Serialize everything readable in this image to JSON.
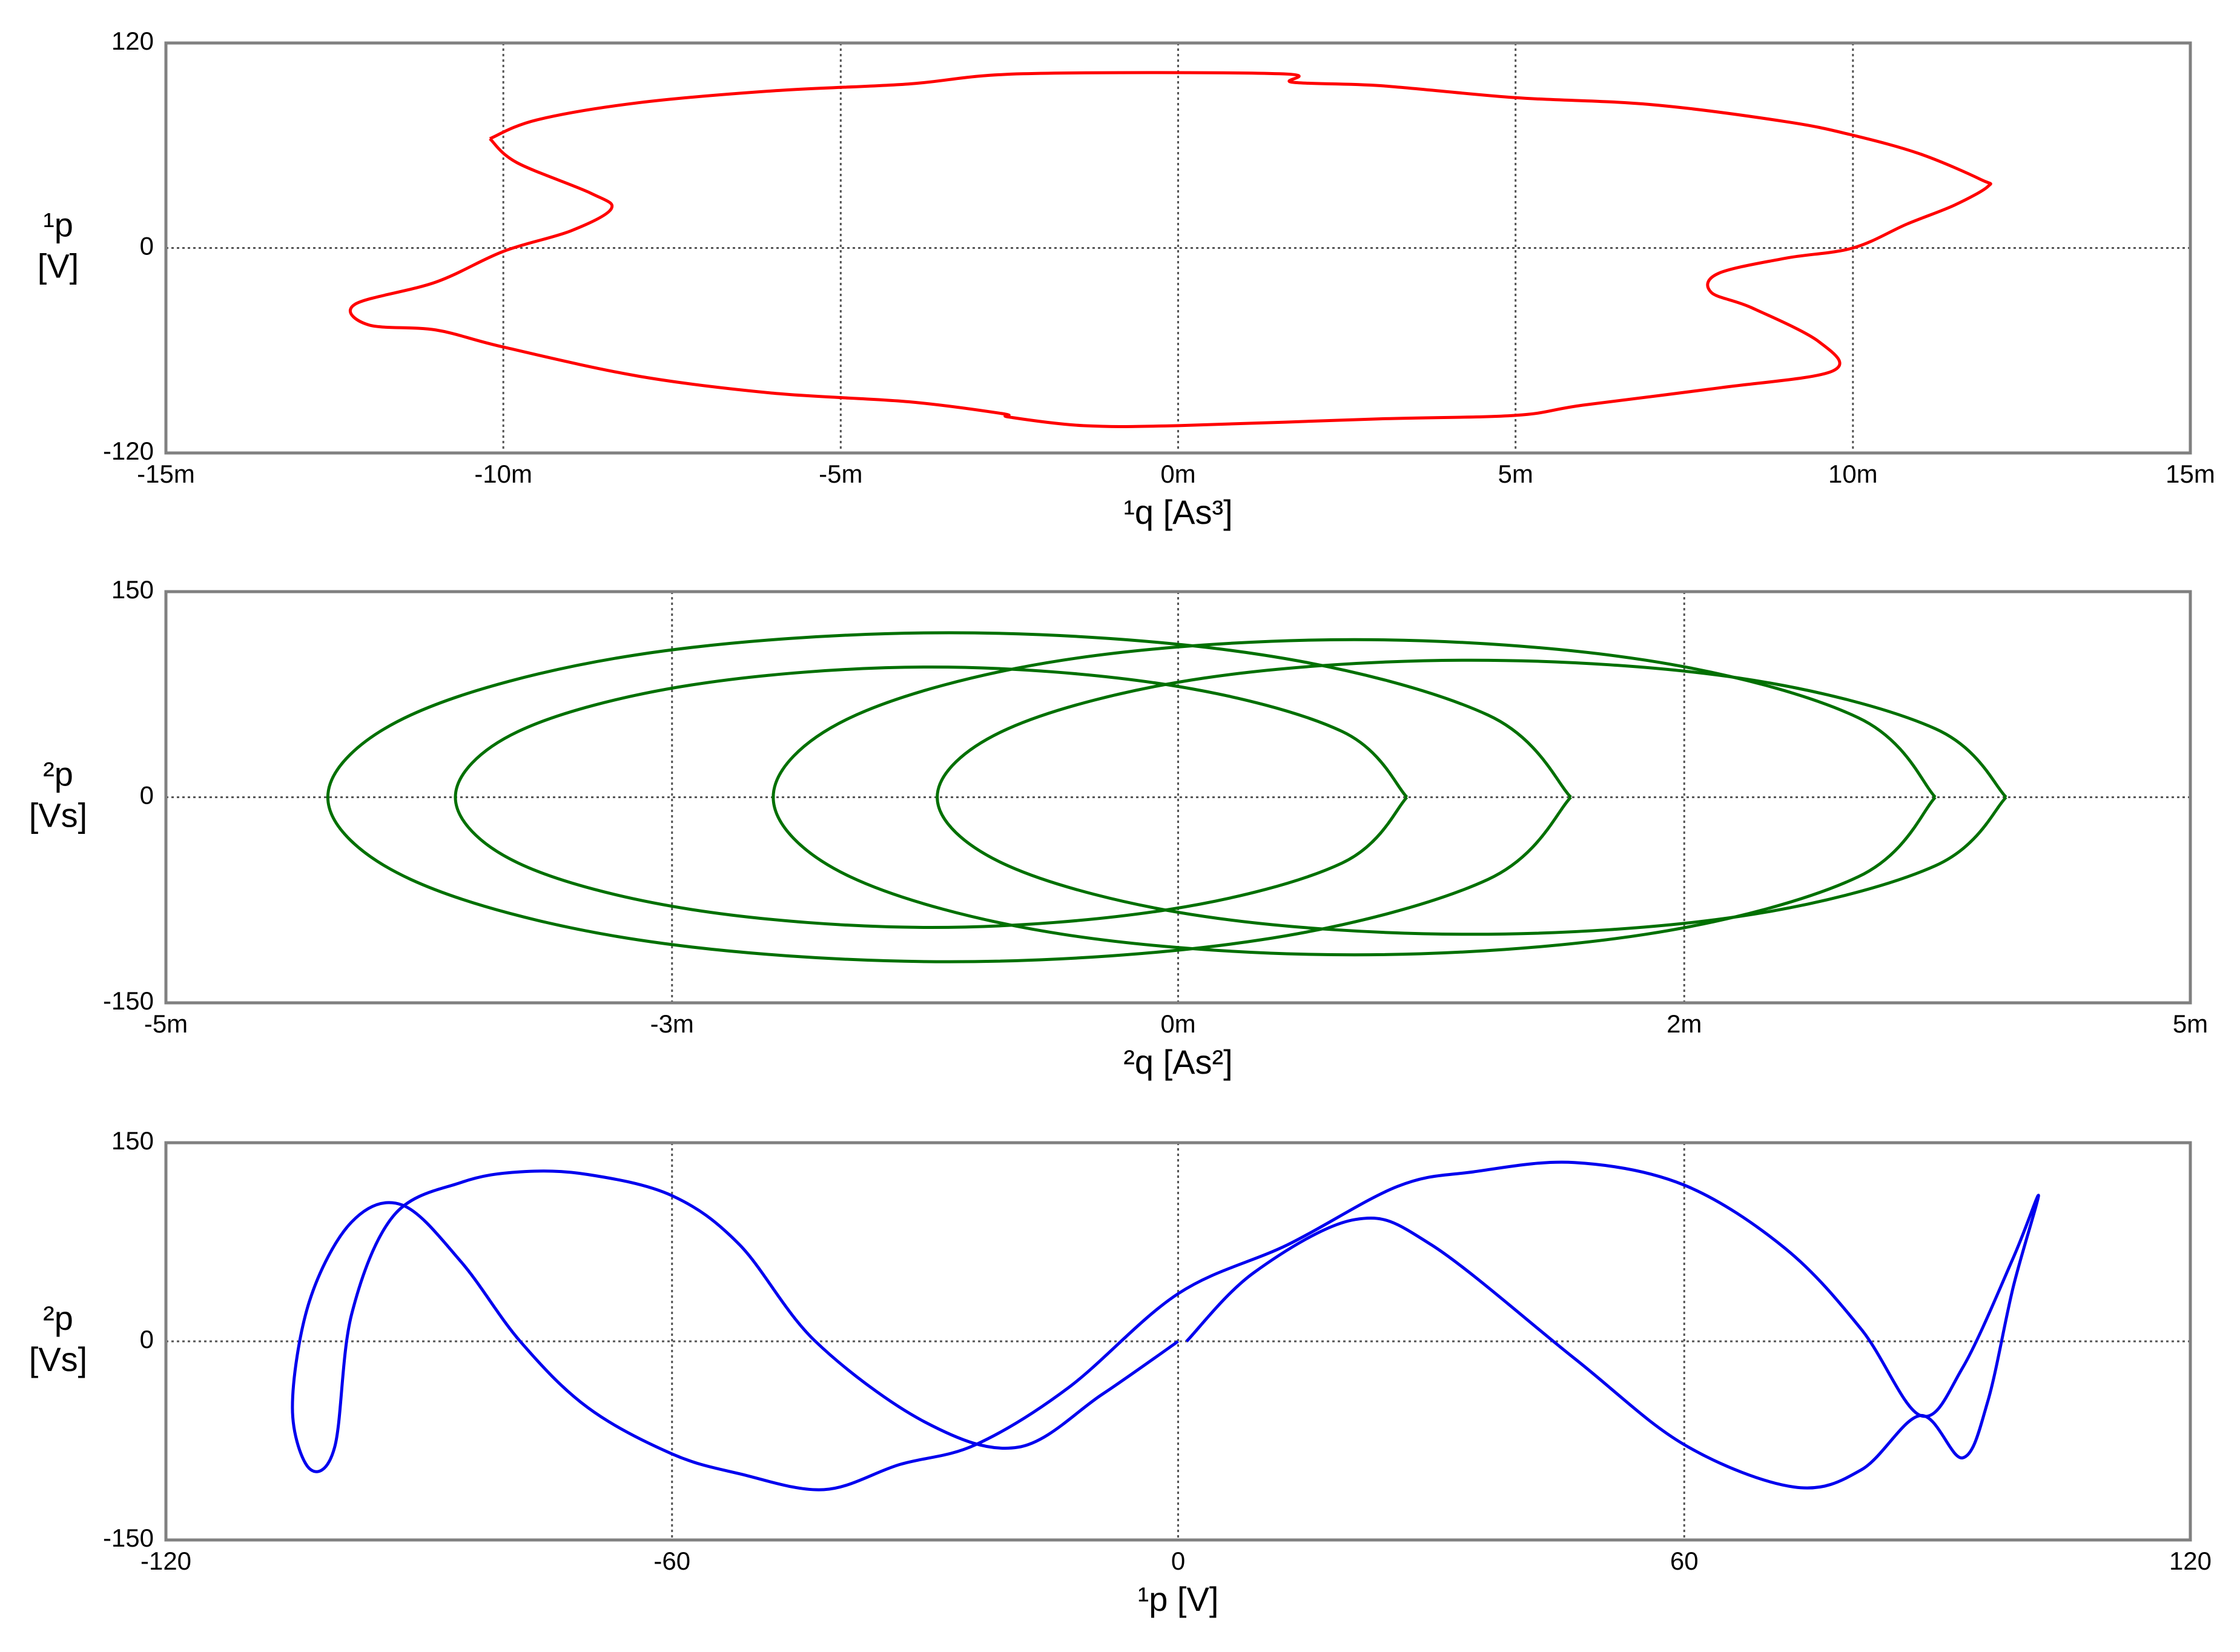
{
  "chart_data": [
    {
      "type": "line",
      "xlabel": "¹q [As³]",
      "ylabel": [
        "¹p",
        "[V]"
      ],
      "xlim": [
        -0.015,
        0.015
      ],
      "ylim": [
        -120,
        120
      ],
      "xticks": [
        {
          "value": -0.015,
          "label": "-15m"
        },
        {
          "value": -0.01,
          "label": "-10m"
        },
        {
          "value": -0.005,
          "label": "-5m"
        },
        {
          "value": 0,
          "label": "0m"
        },
        {
          "value": 0.005,
          "label": "5m"
        },
        {
          "value": 0.01,
          "label": "10m"
        },
        {
          "value": 0.015,
          "label": "15m"
        }
      ],
      "yticks": [
        -120,
        0,
        120
      ],
      "grid": true,
      "series": [
        {
          "color": "#ff0000",
          "x": [
            -0.0102,
            -0.0095,
            -0.008,
            -0.006,
            -0.004,
            -0.0023,
            0.0015,
            0.0017,
            0.003,
            0.005,
            0.007,
            0.009,
            0.01,
            0.011,
            0.0119,
            0.012,
            0.0115,
            0.0108,
            0.01,
            0.009,
            0.008,
            0.0079,
            0.0085,
            0.0095,
            0.0097,
            0.008,
            0.006,
            0.005,
            0.003,
            0,
            -0.0014,
            -0.0025,
            -0.0026,
            -0.004,
            -0.006,
            -0.008,
            -0.01,
            -0.011,
            -0.012,
            -0.0122,
            -0.011,
            -0.01,
            -0.009,
            -0.0084,
            -0.0087,
            -0.0098,
            -0.0102
          ],
          "values": [
            64,
            75,
            85,
            92,
            96,
            102,
            102,
            97,
            95,
            88,
            84,
            74,
            66,
            55,
            40,
            36,
            25,
            14,
            0,
            -6,
            -15,
            -26,
            -35,
            -55,
            -72,
            -82,
            -92,
            -98,
            -100,
            -104,
            -104,
            -99,
            -97,
            -90,
            -85,
            -75,
            -58,
            -48,
            -45,
            -33,
            -20,
            -2,
            10,
            23,
            32,
            50,
            64
          ]
        }
      ]
    },
    {
      "type": "line",
      "xlabel": "²q [As²]",
      "ylabel": [
        "²p",
        "[Vs]"
      ],
      "xlim": [
        -0.005,
        0.005
      ],
      "ylim": [
        -150,
        150
      ],
      "xticks": [
        {
          "value": -0.005,
          "label": "-5m"
        },
        {
          "value": -0.0025,
          "label": "-3m"
        },
        {
          "value": 0,
          "label": "0m"
        },
        {
          "value": 0.0025,
          "label": "2m"
        },
        {
          "value": 0.005,
          "label": "5m"
        }
      ],
      "yticks": [
        -150,
        0,
        150
      ],
      "grid": true,
      "series": [
        {
          "color": "#007000",
          "x": [
            0.00194,
            0.00153,
            0.00041,
            -0.00113,
            -0.00267,
            -0.00379,
            -0.0042,
            -0.00379,
            -0.00267,
            -0.00113,
            0.00041,
            0.00153,
            0.00194
          ],
          "values": [
            0,
            60,
            104,
            120,
            104,
            60,
            0,
            -60,
            -104,
            -120,
            -104,
            -60,
            0
          ]
        },
        {
          "color": "#007000",
          "x": [
            0.00113,
            0.00081,
            -5e-05,
            -0.00122,
            -0.0024,
            -0.00326,
            -0.00357,
            -0.00326,
            -0.0024,
            -0.00122,
            -5e-05,
            0.00081,
            0.00113
          ],
          "values": [
            0,
            48,
            82,
            95,
            82,
            48,
            0,
            -48,
            -82,
            -95,
            -82,
            -48,
            0
          ]
        },
        {
          "color": "#007000",
          "x": [
            0.00374,
            0.00336,
            0.00231,
            0.00087,
            -0.00057,
            -0.00162,
            -0.002,
            -0.00162,
            -0.00057,
            0.00087,
            0.00231,
            0.00336,
            0.00374
          ],
          "values": [
            0,
            58,
            100,
            115,
            100,
            58,
            0,
            -58,
            -100,
            -115,
            -100,
            -58,
            0
          ]
        },
        {
          "color": "#007000",
          "x": [
            0.00409,
            0.00374,
            0.00277,
            0.00145,
            0.00013,
            -0.00084,
            -0.00119,
            -0.00084,
            0.00013,
            0.00145,
            0.00277,
            0.00374,
            0.00409
          ],
          "values": [
            0,
            50,
            87,
            100,
            87,
            50,
            0,
            -50,
            -87,
            -100,
            -87,
            -50,
            0
          ]
        }
      ]
    },
    {
      "type": "line",
      "xlabel": "¹p [V]",
      "ylabel": [
        "²p",
        "[Vs]"
      ],
      "xlim": [
        -120,
        120
      ],
      "ylim": [
        -150,
        150
      ],
      "xticks": [
        -120,
        -60,
        0,
        60,
        120
      ],
      "yticks": [
        -150,
        0,
        150
      ],
      "grid": true,
      "series": [
        {
          "color": "#0000ee",
          "x": [
            1,
            9,
            21,
            30,
            47,
            60,
            73,
            81,
            88,
            93,
            96,
            99,
            102,
            99,
            93,
            88,
            81,
            72,
            60,
            47,
            35,
            26,
            13,
            0,
            -13,
            -24,
            -33,
            -42,
            -52,
            -60,
            -70,
            -78,
            -85,
            -92,
            -98,
            -103,
            -105,
            -103,
            -100,
            -98,
            -93,
            -85,
            -78,
            -70,
            -60,
            -52,
            -43,
            -30,
            -19,
            -9,
            0
          ],
          "values": [
            0,
            52,
            92,
            73,
            -13,
            -78,
            -110,
            -97,
            -56,
            -88,
            -45,
            41,
            110,
            63,
            -20,
            -56,
            9,
            70,
            118,
            135,
            128,
            117,
            73,
            36,
            -35,
            -78,
            -93,
            -112,
            -100,
            -85,
            -50,
            0,
            60,
            103,
            90,
            30,
            -50,
            -96,
            -80,
            20,
            95,
            120,
            128,
            126,
            110,
            73,
            0,
            -61,
            -80,
            -40,
            0
          ]
        }
      ]
    }
  ]
}
